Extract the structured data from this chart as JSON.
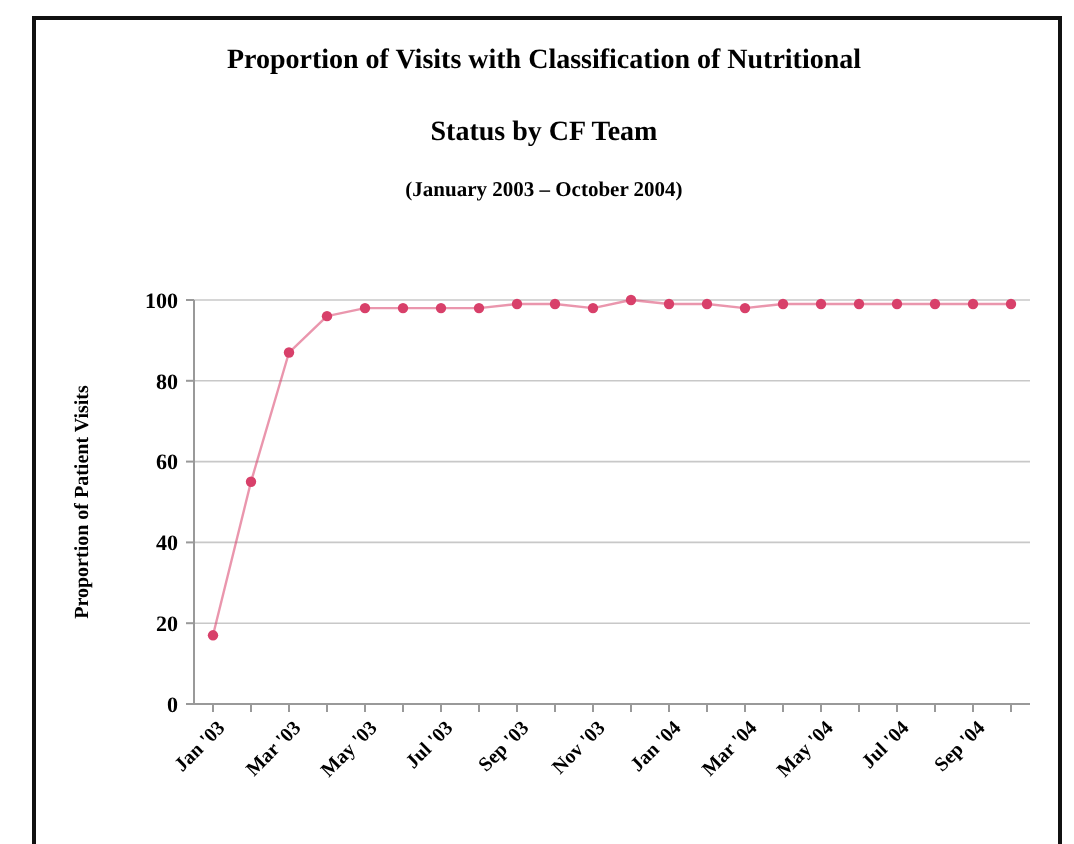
{
  "chart_data": {
    "type": "line",
    "title": "Proportion of Visits with Classification of Nutritional Status by CF Team",
    "subtitle": "(January 2003 – October 2004)",
    "ylabel": "Proportion of Patient Visits",
    "categories": [
      "Jan '03",
      null,
      "Mar '03",
      null,
      "May '03",
      null,
      "Jul '03",
      null,
      "Sep '03",
      null,
      "Nov '03",
      null,
      "Jan '04",
      null,
      "Mar '04",
      null,
      "May '04",
      null,
      "Jul '04",
      null,
      "Sep '04",
      null
    ],
    "series": [
      {
        "color": "#d8406a",
        "values": [
          17,
          55,
          87,
          96,
          98,
          98,
          98,
          98,
          99,
          99,
          98,
          100,
          99,
          99,
          98,
          99,
          99,
          99,
          99,
          99,
          99,
          99
        ]
      }
    ],
    "ylim": [
      0,
      100
    ],
    "yticks": [
      0,
      20,
      40,
      60,
      80,
      100
    ],
    "grid": "y",
    "marker": "circle",
    "line_style": "solid"
  }
}
